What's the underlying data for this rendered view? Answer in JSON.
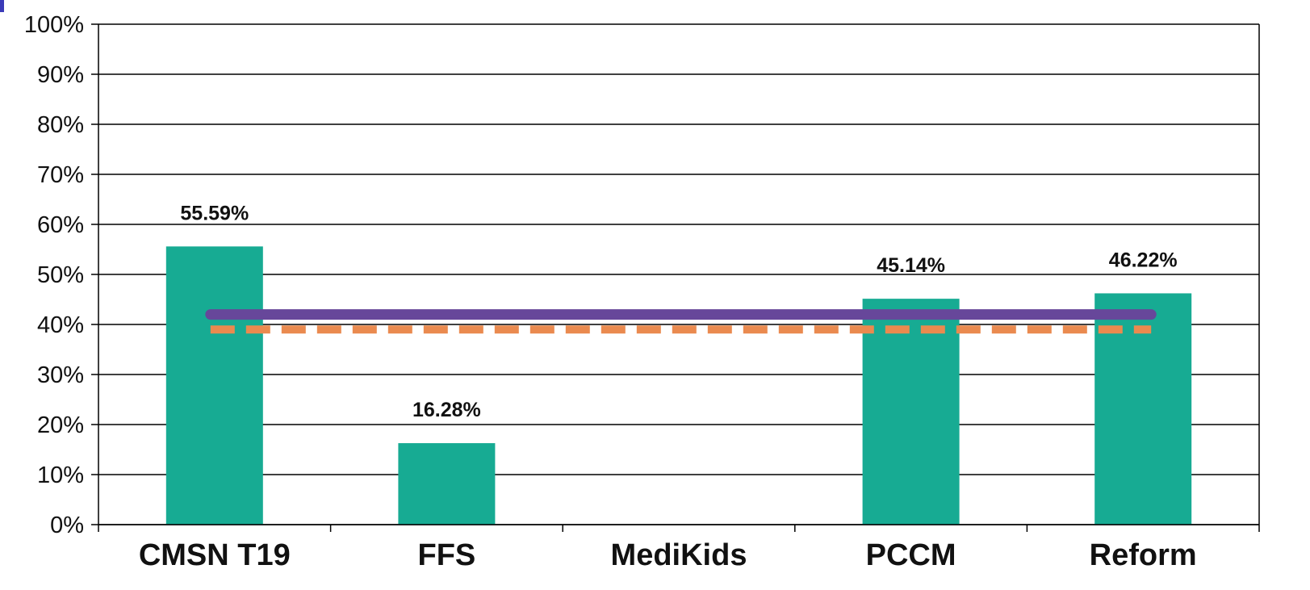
{
  "chart_data": {
    "type": "bar",
    "categories": [
      "CMSN T19",
      "FFS",
      "MediKids",
      "PCCM",
      "Reform"
    ],
    "values": [
      55.59,
      16.28,
      null,
      45.14,
      46.22
    ],
    "data_labels": [
      "55.59%",
      "16.28%",
      "",
      "45.14%",
      "46.22%"
    ],
    "y_ticks": [
      "0%",
      "10%",
      "20%",
      "30%",
      "40%",
      "50%",
      "60%",
      "70%",
      "80%",
      "90%",
      "100%"
    ],
    "ylim": [
      0,
      100
    ],
    "grid": true,
    "reference_lines": [
      {
        "value": 42,
        "style": "solid"
      },
      {
        "value": 39,
        "style": "dashed"
      }
    ],
    "colors": {
      "bar": "#17ab93",
      "solid_line": "#67479a",
      "dashed_line": "#ea8a4f",
      "grid": "#000000",
      "corner_mark": "#3b3bb8"
    }
  }
}
